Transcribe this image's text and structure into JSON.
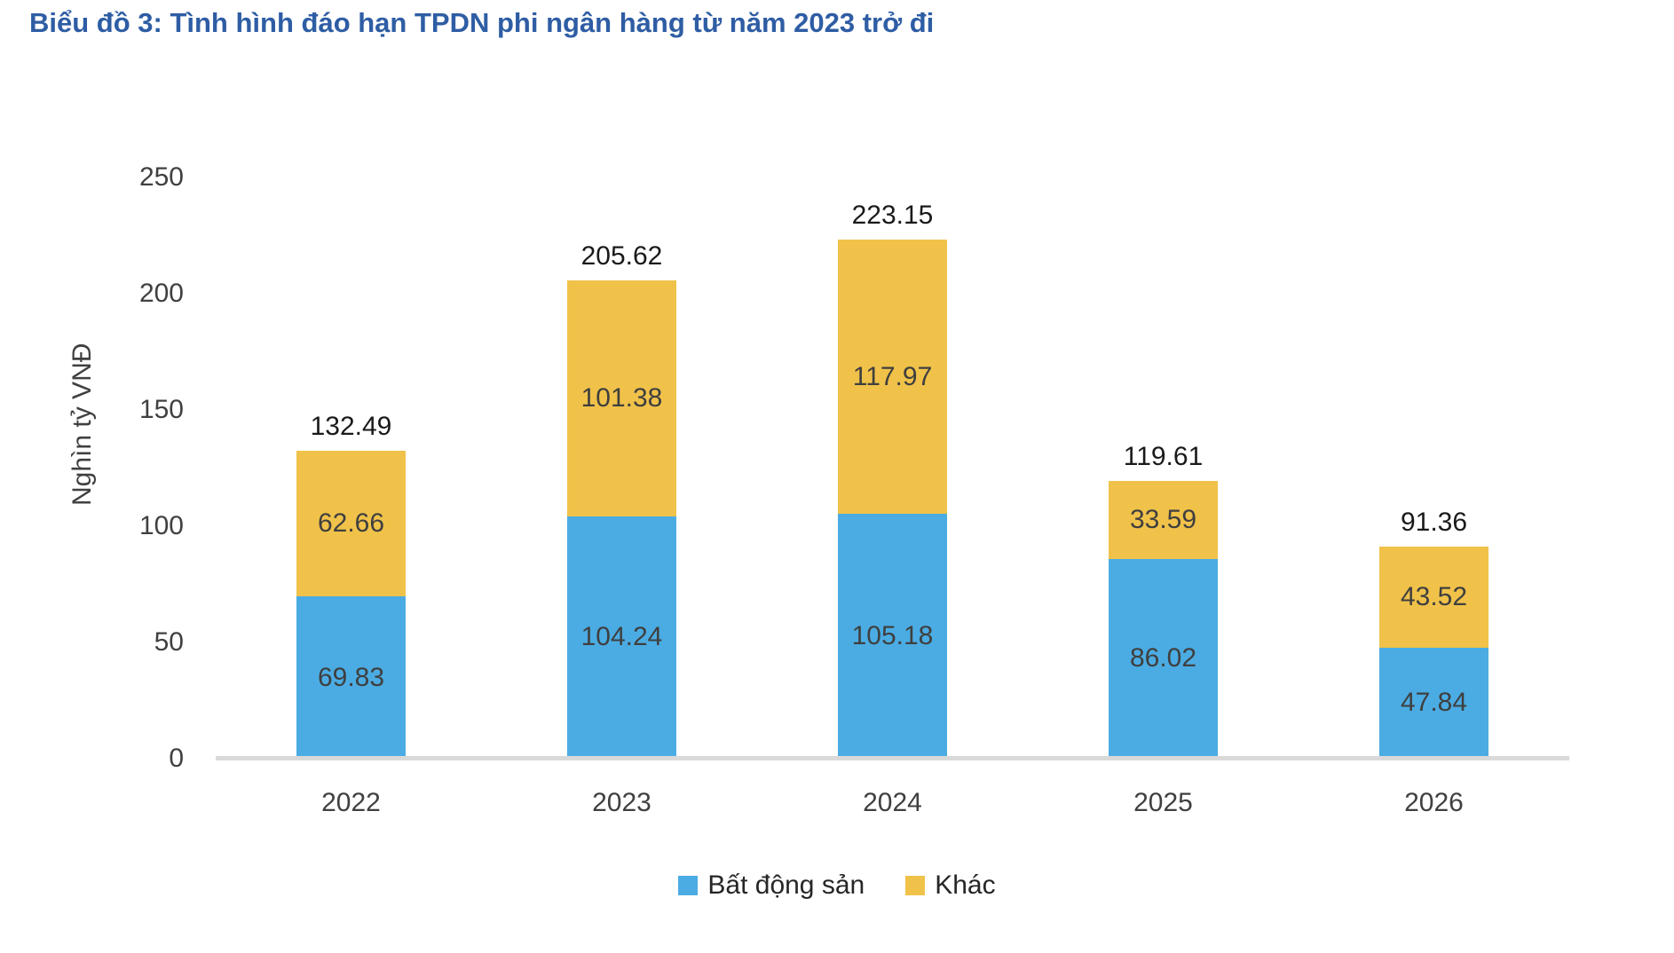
{
  "title": "Biểu đồ 3: Tình hình đáo hạn TPDN phi ngân hàng từ năm 2023 trở đi",
  "chart_data": {
    "type": "bar",
    "stacked": true,
    "categories": [
      "2022",
      "2023",
      "2024",
      "2025",
      "2026"
    ],
    "series": [
      {
        "name": "Bất động sản",
        "color": "#4BACE3",
        "values": [
          69.83,
          104.24,
          105.18,
          86.02,
          47.84
        ]
      },
      {
        "name": "Khác",
        "color": "#F0C24A",
        "values": [
          62.66,
          101.38,
          117.97,
          33.59,
          43.52
        ]
      }
    ],
    "totals": [
      132.49,
      205.62,
      223.15,
      119.61,
      91.36
    ],
    "ylabel": "Nghìn tỷ VNĐ",
    "xlabel": "",
    "yticks": [
      0,
      50,
      100,
      150,
      200,
      250
    ],
    "ylim": [
      0,
      250
    ],
    "grid": false,
    "legend_position": "bottom"
  },
  "colors": {
    "title": "#2E5DA4",
    "axis_line": "#D9D9D9",
    "tick_text": "#404040",
    "segment_label_text": "#3F3F3F",
    "total_label_text": "#1A1A1A"
  }
}
